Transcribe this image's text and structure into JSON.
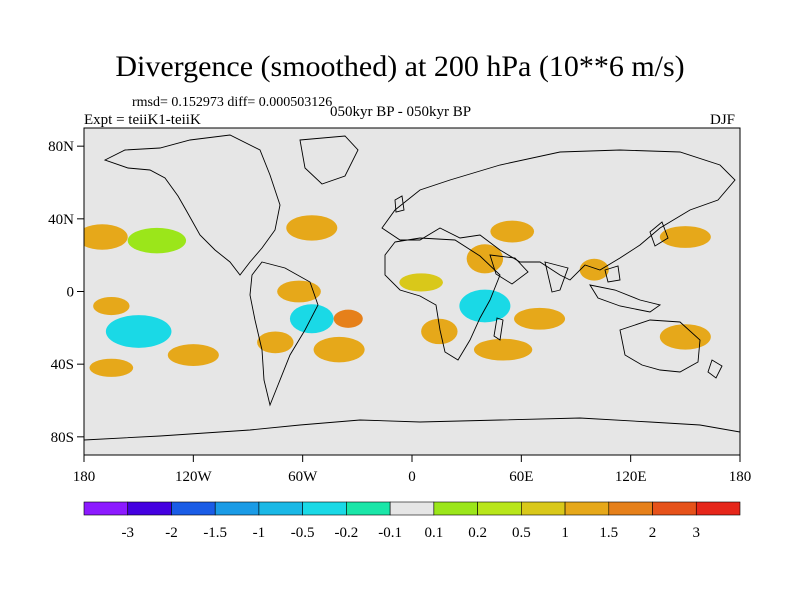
{
  "title": "Divergence (smoothed) at 200 hPa (10**6 m/s)",
  "stats": "rmsd= 0.152973 diff= 0.000503126",
  "experiment": "Expt = teiiK1-teiiK",
  "comparison": "050kyr BP - 050kyr BP",
  "season": "DJF",
  "map": {
    "lon_range": [
      -180,
      180
    ],
    "lat_range": [
      -90,
      90
    ],
    "lat_ticks": [
      {
        "value": 80,
        "label": "80N"
      },
      {
        "value": 40,
        "label": "40N"
      },
      {
        "value": 0,
        "label": "0"
      },
      {
        "value": -40,
        "label": "40S"
      },
      {
        "value": -80,
        "label": "80S"
      }
    ],
    "lon_ticks": [
      {
        "value": -180,
        "label": "180"
      },
      {
        "value": -120,
        "label": "120W"
      },
      {
        "value": -60,
        "label": "60W"
      },
      {
        "value": 0,
        "label": "0"
      },
      {
        "value": 60,
        "label": "60E"
      },
      {
        "value": 120,
        "label": "120E"
      },
      {
        "value": 180,
        "label": "180"
      }
    ],
    "background_color": "#e6e6e6",
    "regions": [
      {
        "lon": -170,
        "lat": 30,
        "rlon": 14,
        "rlat": 7,
        "bin": 11
      },
      {
        "lon": -140,
        "lat": 28,
        "rlon": 16,
        "rlat": 7,
        "bin": 8
      },
      {
        "lon": -120,
        "lat": 15,
        "rlon": 14,
        "rlat": 5,
        "bin": 7
      },
      {
        "lon": -100,
        "lat": 22,
        "rlon": 12,
        "rlat": 6,
        "bin": 7
      },
      {
        "lon": -85,
        "lat": 45,
        "rlon": 12,
        "rlat": 6,
        "bin": 7
      },
      {
        "lon": -55,
        "lat": 35,
        "rlon": 14,
        "rlat": 7,
        "bin": 11
      },
      {
        "lon": -45,
        "lat": 22,
        "rlon": 10,
        "rlat": 5,
        "bin": 7
      },
      {
        "lon": -62,
        "lat": 0,
        "rlon": 12,
        "rlat": 6,
        "bin": 11
      },
      {
        "lon": -55,
        "lat": -15,
        "rlon": 12,
        "rlat": 8,
        "bin": 5
      },
      {
        "lon": -35,
        "lat": -15,
        "rlon": 8,
        "rlat": 5,
        "bin": 12
      },
      {
        "lon": -75,
        "lat": -28,
        "rlon": 10,
        "rlat": 6,
        "bin": 11
      },
      {
        "lon": -40,
        "lat": -32,
        "rlon": 14,
        "rlat": 7,
        "bin": 11
      },
      {
        "lon": -150,
        "lat": -22,
        "rlon": 18,
        "rlat": 9,
        "bin": 5
      },
      {
        "lon": -165,
        "lat": -42,
        "rlon": 12,
        "rlat": 5,
        "bin": 11
      },
      {
        "lon": -120,
        "lat": -35,
        "rlon": 14,
        "rlat": 6,
        "bin": 11
      },
      {
        "lon": -165,
        "lat": -8,
        "rlon": 10,
        "rlat": 5,
        "bin": 11
      },
      {
        "lon": -100,
        "lat": -5,
        "rlon": 12,
        "rlat": 5,
        "bin": 7
      },
      {
        "lon": -5,
        "lat": 32,
        "rlon": 14,
        "rlat": 6,
        "bin": 7
      },
      {
        "lon": 15,
        "lat": 20,
        "rlon": 24,
        "rlat": 6,
        "bin": 7
      },
      {
        "lon": 5,
        "lat": 5,
        "rlon": 12,
        "rlat": 5,
        "bin": 10
      },
      {
        "lon": 40,
        "lat": 18,
        "rlon": 10,
        "rlat": 8,
        "bin": 11
      },
      {
        "lon": 55,
        "lat": 33,
        "rlon": 12,
        "rlat": 6,
        "bin": 11
      },
      {
        "lon": 40,
        "lat": -8,
        "rlon": 14,
        "rlat": 9,
        "bin": 5
      },
      {
        "lon": 15,
        "lat": -22,
        "rlon": 10,
        "rlat": 7,
        "bin": 11
      },
      {
        "lon": 50,
        "lat": -32,
        "rlon": 16,
        "rlat": 6,
        "bin": 11
      },
      {
        "lon": 5,
        "lat": -40,
        "rlon": 12,
        "rlat": 4,
        "bin": 7
      },
      {
        "lon": 70,
        "lat": -15,
        "rlon": 14,
        "rlat": 6,
        "bin": 11
      },
      {
        "lon": 85,
        "lat": 5,
        "rlon": 10,
        "rlat": 6,
        "bin": 7
      },
      {
        "lon": 100,
        "lat": 12,
        "rlon": 8,
        "rlat": 6,
        "bin": 11
      },
      {
        "lon": 125,
        "lat": 5,
        "rlon": 12,
        "rlat": 7,
        "bin": 7
      },
      {
        "lon": 150,
        "lat": 30,
        "rlon": 14,
        "rlat": 6,
        "bin": 11
      },
      {
        "lon": 160,
        "lat": 10,
        "rlon": 16,
        "rlat": 6,
        "bin": 7
      },
      {
        "lon": 115,
        "lat": -20,
        "rlon": 12,
        "rlat": 5,
        "bin": 7
      },
      {
        "lon": 150,
        "lat": -25,
        "rlon": 14,
        "rlat": 7,
        "bin": 11
      },
      {
        "lon": 170,
        "lat": -10,
        "rlon": 8,
        "rlat": 5,
        "bin": 7
      },
      {
        "lon": 100,
        "lat": -38,
        "rlon": 16,
        "rlat": 4,
        "bin": 7
      },
      {
        "lon": 165,
        "lat": -42,
        "rlon": 10,
        "rlat": 5,
        "bin": 7
      },
      {
        "lon": 120,
        "lat": -72,
        "rlon": 6,
        "rlat": 3,
        "bin": 7
      },
      {
        "lon": -30,
        "lat": 55,
        "rlon": 6,
        "rlat": 3,
        "bin": 7
      },
      {
        "lon": 120,
        "lat": 40,
        "rlon": 8,
        "rlat": 4,
        "bin": 7
      }
    ]
  },
  "colorbar": {
    "colors": [
      "#8c1aff",
      "#4400e0",
      "#1a5ce6",
      "#1a9be6",
      "#1ab8e6",
      "#1ad9e6",
      "#1ae6a8",
      "#e6e6e6",
      "#9be61a",
      "#b8e61a",
      "#d9c81a",
      "#e6a81a",
      "#e6801a",
      "#e6521a",
      "#e6261a"
    ],
    "labels": [
      "-3",
      "-2",
      "-1.5",
      "-1",
      "-0.5",
      "-0.2",
      "-0.1",
      "0.1",
      "0.2",
      "0.5",
      "1",
      "1.5",
      "2",
      "3"
    ]
  }
}
